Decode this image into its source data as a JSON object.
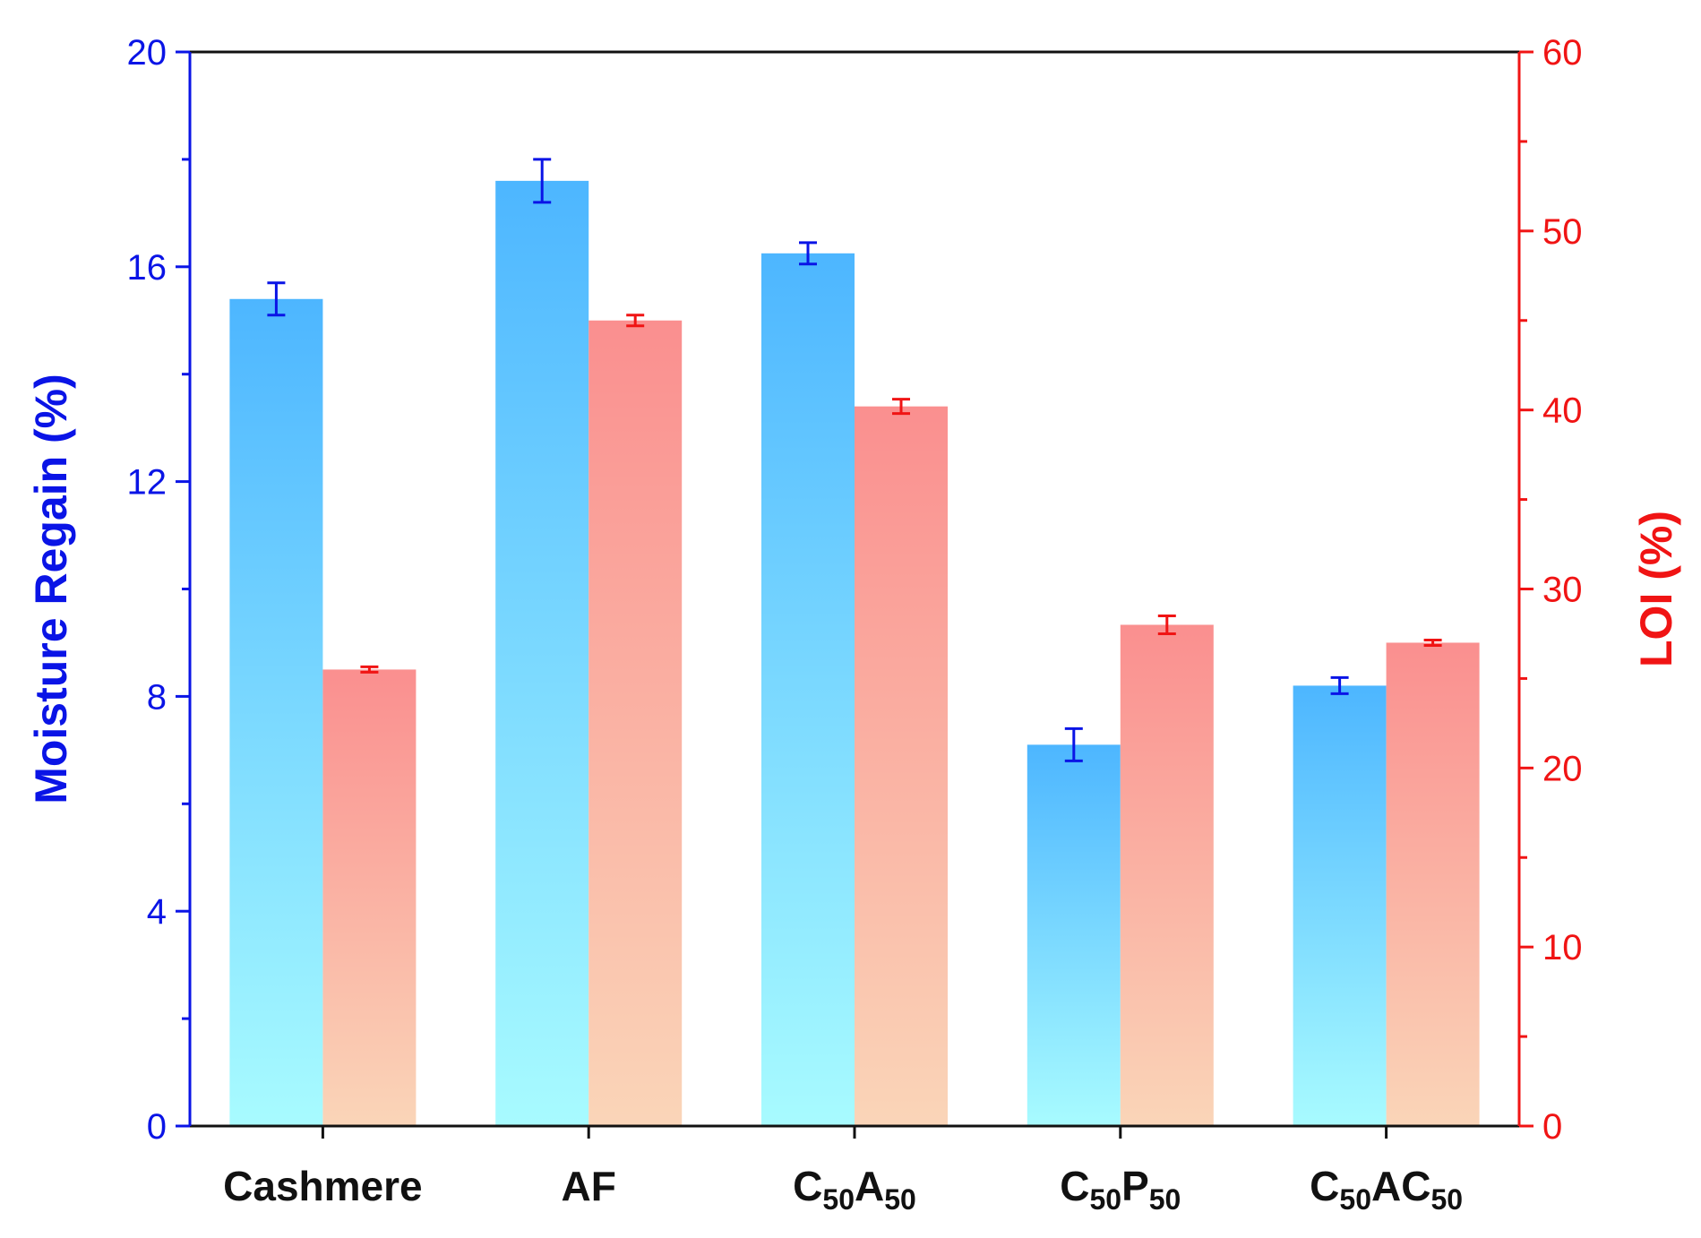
{
  "chart_data": {
    "type": "bar",
    "categories": [
      {
        "id": "cashmere",
        "parts": [
          {
            "t": "Cashmere",
            "sub": false
          }
        ]
      },
      {
        "id": "af",
        "parts": [
          {
            "t": "AF",
            "sub": false
          }
        ]
      },
      {
        "id": "c50a50",
        "parts": [
          {
            "t": "C",
            "sub": false
          },
          {
            "t": "50",
            "sub": true
          },
          {
            "t": "A",
            "sub": false
          },
          {
            "t": "50",
            "sub": true
          }
        ]
      },
      {
        "id": "c50p50",
        "parts": [
          {
            "t": "C",
            "sub": false
          },
          {
            "t": "50",
            "sub": true
          },
          {
            "t": "P",
            "sub": false
          },
          {
            "t": "50",
            "sub": true
          }
        ]
      },
      {
        "id": "c50ac50",
        "parts": [
          {
            "t": "C",
            "sub": false
          },
          {
            "t": "50",
            "sub": true
          },
          {
            "t": "AC",
            "sub": false
          },
          {
            "t": "50",
            "sub": true
          }
        ]
      }
    ],
    "series": [
      {
        "name": "Moisture Regain",
        "axis": "left",
        "values": [
          15.4,
          17.6,
          16.25,
          7.1,
          8.2
        ],
        "errors": [
          0.3,
          0.4,
          0.2,
          0.3,
          0.15
        ],
        "gradient": [
          "#4db6ff",
          "#a8fbff"
        ],
        "error_color": "#0a14e6"
      },
      {
        "name": "LOI",
        "axis": "right",
        "values": [
          25.5,
          45.0,
          40.2,
          28.0,
          27.0
        ],
        "errors": [
          0.15,
          0.3,
          0.4,
          0.5,
          0.15
        ],
        "gradient": [
          "#fa8f8f",
          "#fad5b8"
        ],
        "error_color": "#f01414"
      }
    ],
    "y_left": {
      "label": "Moisture Regain (%)",
      "range": [
        0,
        20
      ],
      "major_ticks": [
        0,
        4,
        8,
        12,
        16,
        20
      ],
      "tick_labels": [
        "0",
        "4",
        "8",
        "12",
        "16",
        "20"
      ],
      "minor_step": 2,
      "color": "#0a14e6"
    },
    "y_right": {
      "label": "LOI (%)",
      "range": [
        0,
        60
      ],
      "major_ticks": [
        0,
        10,
        20,
        30,
        40,
        50,
        60
      ],
      "tick_labels": [
        "0",
        "10",
        "20",
        "30",
        "40",
        "50",
        "60"
      ],
      "minor_step": 5,
      "color": "#f01414"
    },
    "x_axis_color": "#111111"
  }
}
